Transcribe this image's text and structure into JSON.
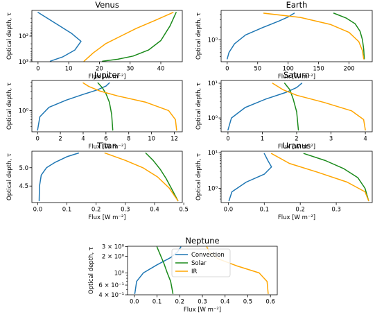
{
  "series_colors": {
    "Convection": "#1f77b4",
    "Solar": "#1a8a1a",
    "IR": "#ffa500"
  },
  "legend": {
    "placement": "upper-center",
    "entries": [
      "Convection",
      "Solar",
      "IR"
    ]
  },
  "chart_data": [
    {
      "type": "line",
      "title": "Venus",
      "xlabel": "Flux [$W\\ m^{-2}$]",
      "xlabel_text": "Flux [W m⁻²]",
      "ylabel": "Optical depth, τ",
      "yscale": "log",
      "yinverted": true,
      "xlim": [
        -2,
        47
      ],
      "ylim": [
        1000,
        10
      ],
      "xticks": [
        {
          "v": 0,
          "t": "0"
        },
        {
          "v": 10,
          "t": "10"
        },
        {
          "v": 20,
          "t": "20"
        },
        {
          "v": 30,
          "t": "30"
        },
        {
          "v": 40,
          "t": "40"
        }
      ],
      "yticks": [
        {
          "v": 100,
          "t": "10²"
        },
        {
          "v": 1000,
          "t": "10³"
        }
      ],
      "ymin_ticks": [
        20,
        30,
        40,
        50,
        60,
        70,
        80,
        90,
        200,
        300,
        400,
        500,
        600,
        700,
        800,
        900
      ],
      "series": [
        {
          "name": "Convection",
          "x": [
            0,
            3,
            7,
            11,
            14,
            12,
            8,
            4
          ],
          "y": [
            12,
            20,
            40,
            80,
            160,
            350,
            650,
            950
          ]
        },
        {
          "name": "Solar",
          "x": [
            45,
            43,
            40,
            36,
            31,
            26,
            21
          ],
          "y": [
            12,
            40,
            150,
            350,
            600,
            800,
            950
          ]
        },
        {
          "name": "IR",
          "x": [
            44,
            38,
            32,
            27,
            22,
            18,
            15
          ],
          "y": [
            12,
            25,
            50,
            100,
            200,
            450,
            950
          ]
        }
      ]
    },
    {
      "type": "line",
      "title": "Earth",
      "xlabel_text": "Flux [W m⁻²]",
      "ylabel": "Optical depth, τ",
      "yscale": "log",
      "yinverted": true,
      "xlim": [
        -10,
        238
      ],
      "ylim": [
        0.3,
        5
      ],
      "xticks": [
        {
          "v": 0,
          "t": "0"
        },
        {
          "v": 50,
          "t": "50"
        },
        {
          "v": 100,
          "t": "100"
        },
        {
          "v": 150,
          "t": "150"
        },
        {
          "v": 200,
          "t": "200"
        }
      ],
      "yticks": [
        {
          "v": 1,
          "t": "10⁰"
        }
      ],
      "ymin_ticks": [
        0.4,
        0.5,
        0.6,
        0.7,
        0.8,
        0.9,
        2,
        3,
        4
      ],
      "series": [
        {
          "name": "Convection",
          "x": [
            0,
            3,
            12,
            30,
            60,
            85,
            100,
            110
          ],
          "y": [
            0.35,
            0.5,
            0.8,
            1.3,
            2,
            2.8,
            3.5,
            4.3
          ]
        },
        {
          "name": "Solar",
          "x": [
            225,
            224,
            222,
            218,
            210,
            195,
            175
          ],
          "y": [
            0.35,
            0.6,
            1,
            1.6,
            2.4,
            3.3,
            4.3
          ]
        },
        {
          "name": "IR",
          "x": [
            224,
            222,
            216,
            200,
            170,
            120,
            60
          ],
          "y": [
            0.35,
            0.55,
            0.9,
            1.5,
            2.3,
            3.4,
            4.3
          ]
        }
      ]
    },
    {
      "type": "line",
      "title": "Jupiter",
      "xlabel_text": "Flux [W m⁻²]",
      "ylabel": "Optical depth, τ",
      "yscale": "log",
      "yinverted": true,
      "xlim": [
        -0.5,
        12.7
      ],
      "ylim": [
        0.3,
        5.5
      ],
      "xticks": [
        {
          "v": 0,
          "t": "0"
        },
        {
          "v": 2,
          "t": "2"
        },
        {
          "v": 4,
          "t": "4"
        },
        {
          "v": 6,
          "t": "6"
        },
        {
          "v": 8,
          "t": "8"
        },
        {
          "v": 10,
          "t": "10"
        },
        {
          "v": 12,
          "t": "12"
        }
      ],
      "yticks": [
        {
          "v": 1,
          "t": "10⁰"
        }
      ],
      "ymin_ticks": [
        0.4,
        0.5,
        0.6,
        0.7,
        0.8,
        0.9,
        2,
        3,
        4,
        5
      ],
      "series": [
        {
          "name": "Convection",
          "x": [
            0,
            0.2,
            1.0,
            2.5,
            4.0,
            5.2,
            6.0,
            6.3
          ],
          "y": [
            0.33,
            0.7,
            1.2,
            1.8,
            2.5,
            3.2,
            4.0,
            4.8
          ]
        },
        {
          "name": "Solar",
          "x": [
            6.6,
            6.5,
            6.3,
            6.0,
            5.7,
            5.3
          ],
          "y": [
            0.33,
            0.8,
            1.6,
            2.6,
            3.6,
            4.8
          ]
        },
        {
          "name": "IR",
          "x": [
            12.2,
            12.1,
            11.5,
            9.5,
            7.0,
            5.5,
            4.5,
            4.0
          ],
          "y": [
            0.33,
            0.6,
            1.0,
            1.6,
            2.3,
            3.0,
            3.9,
            4.8
          ]
        }
      ]
    },
    {
      "type": "line",
      "title": "Saturn",
      "xlabel_text": "Flux [W m⁻²]",
      "ylabel": "Optical depth, τ",
      "yscale": "log",
      "yinverted": true,
      "xlim": [
        -0.2,
        4.2
      ],
      "ylim": [
        0.4,
        12
      ],
      "xticks": [
        {
          "v": 0,
          "t": "0"
        },
        {
          "v": 1,
          "t": "1"
        },
        {
          "v": 2,
          "t": "2"
        },
        {
          "v": 3,
          "t": "3"
        },
        {
          "v": 4,
          "t": "4"
        }
      ],
      "yticks": [
        {
          "v": 1,
          "t": "10⁰"
        },
        {
          "v": 10,
          "t": "10¹"
        }
      ],
      "ymin_ticks": [
        0.5,
        0.6,
        0.7,
        0.8,
        0.9,
        2,
        3,
        4,
        5,
        6,
        7,
        8,
        9
      ],
      "series": [
        {
          "name": "Convection",
          "x": [
            0,
            0.1,
            0.5,
            1.1,
            1.7,
            2.0,
            2.15
          ],
          "y": [
            0.45,
            1.0,
            2.0,
            3.5,
            5.5,
            7.5,
            10
          ]
        },
        {
          "name": "Solar",
          "x": [
            2.05,
            2.0,
            1.9,
            1.8,
            1.65
          ],
          "y": [
            0.45,
            1.5,
            3.5,
            6.5,
            10
          ]
        },
        {
          "name": "IR",
          "x": [
            4.0,
            3.95,
            3.6,
            2.8,
            2.0,
            1.6,
            1.3
          ],
          "y": [
            0.45,
            0.9,
            1.6,
            2.8,
            4.5,
            6.5,
            10
          ]
        }
      ]
    },
    {
      "type": "line",
      "title": "Titan",
      "xlabel_text": "Flux [W m⁻²]",
      "ylabel": "Optical depth, τ",
      "yscale": "linear",
      "yinverted": true,
      "xlim": [
        -0.02,
        0.495
      ],
      "ylim": [
        4.05,
        5.45
      ],
      "xticks": [
        {
          "v": 0,
          "t": "0.0"
        },
        {
          "v": 0.1,
          "t": "0.1"
        },
        {
          "v": 0.2,
          "t": "0.2"
        },
        {
          "v": 0.3,
          "t": "0.3"
        },
        {
          "v": 0.4,
          "t": "0.4"
        },
        {
          "v": 0.5,
          "t": "0.5"
        }
      ],
      "yticks": [
        {
          "v": 4.5,
          "t": "4.5"
        },
        {
          "v": 5.0,
          "t": "5.0"
        }
      ],
      "ymin_ticks": [],
      "series": [
        {
          "name": "Convection",
          "x": [
            0.005,
            0.006,
            0.012,
            0.03,
            0.06,
            0.1,
            0.14
          ],
          "y": [
            4.1,
            4.5,
            4.8,
            5.0,
            5.15,
            5.3,
            5.4
          ]
        },
        {
          "name": "Solar",
          "x": [
            0.48,
            0.46,
            0.44,
            0.42,
            0.395,
            0.37
          ],
          "y": [
            4.1,
            4.4,
            4.7,
            4.95,
            5.2,
            5.4
          ]
        },
        {
          "name": "IR",
          "x": [
            0.48,
            0.45,
            0.41,
            0.36,
            0.3,
            0.23
          ],
          "y": [
            4.1,
            4.45,
            4.75,
            5.0,
            5.2,
            5.4
          ]
        }
      ]
    },
    {
      "type": "line",
      "title": "Uranus",
      "xlabel_text": "Flux [W m⁻²]",
      "ylabel": "Optical depth, τ",
      "yscale": "log",
      "yinverted": true,
      "xlim": [
        -0.02,
        0.4
      ],
      "ylim": [
        0.4,
        11
      ],
      "xticks": [
        {
          "v": 0,
          "t": "0.0"
        },
        {
          "v": 0.1,
          "t": "0.1"
        },
        {
          "v": 0.2,
          "t": "0.2"
        },
        {
          "v": 0.3,
          "t": "0.3"
        }
      ],
      "yticks": [
        {
          "v": 1,
          "t": "10⁰"
        },
        {
          "v": 10,
          "t": "10¹"
        }
      ],
      "ymin_ticks": [
        0.5,
        0.6,
        0.7,
        0.8,
        0.9,
        2,
        3,
        4,
        5,
        6,
        7,
        8,
        9
      ],
      "series": [
        {
          "name": "Convection",
          "x": [
            0.002,
            0.01,
            0.05,
            0.1,
            0.12,
            0.11,
            0.1
          ],
          "y": [
            0.45,
            0.8,
            1.5,
            2.5,
            4.0,
            6.0,
            9.5
          ]
        },
        {
          "name": "Solar",
          "x": [
            0.39,
            0.38,
            0.36,
            0.32,
            0.27,
            0.21
          ],
          "y": [
            0.45,
            1.0,
            2.0,
            3.6,
            6.0,
            9.5
          ]
        },
        {
          "name": "IR",
          "x": [
            0.39,
            0.38,
            0.33,
            0.25,
            0.17,
            0.12
          ],
          "y": [
            0.45,
            0.8,
            1.5,
            2.8,
            5.0,
            9.5
          ]
        }
      ]
    },
    {
      "type": "line",
      "title": "Neptune",
      "xlabel_text": "Flux [W m⁻²]",
      "ylabel": "Optical depth, τ",
      "yscale": "log",
      "yinverted": true,
      "xlim": [
        -0.03,
        0.63
      ],
      "ylim": [
        0.4,
        3.05
      ],
      "xticks": [
        {
          "v": 0,
          "t": "0.0"
        },
        {
          "v": 0.1,
          "t": "0.1"
        },
        {
          "v": 0.2,
          "t": "0.2"
        },
        {
          "v": 0.3,
          "t": "0.3"
        },
        {
          "v": 0.4,
          "t": "0.4"
        },
        {
          "v": 0.5,
          "t": "0.5"
        },
        {
          "v": 0.6,
          "t": "0.6"
        }
      ],
      "yticks": [
        {
          "v": 0.4,
          "t": "4 × 10⁻¹"
        },
        {
          "v": 0.6,
          "t": "6 × 10⁻¹"
        },
        {
          "v": 1,
          "t": "10⁰"
        },
        {
          "v": 2,
          "t": "2 × 10⁰"
        },
        {
          "v": 3,
          "t": "3 × 10⁰"
        }
      ],
      "ymin_ticks": [
        0.5,
        0.7,
        0.8,
        0.9
      ],
      "series": [
        {
          "name": "Convection",
          "x": [
            0.002,
            0.01,
            0.04,
            0.1,
            0.16,
            0.19,
            0.205
          ],
          "y": [
            0.42,
            0.7,
            1.0,
            1.4,
            1.9,
            2.4,
            2.95
          ]
        },
        {
          "name": "Solar",
          "x": [
            0.17,
            0.16,
            0.145,
            0.13,
            0.115,
            0.1
          ],
          "y": [
            0.42,
            0.7,
            1.0,
            1.5,
            2.1,
            2.95
          ]
        },
        {
          "name": "IR",
          "x": [
            0.59,
            0.585,
            0.55,
            0.45,
            0.37,
            0.33,
            0.32
          ],
          "y": [
            0.42,
            0.7,
            1.0,
            1.35,
            1.8,
            2.4,
            2.95
          ]
        }
      ]
    }
  ]
}
